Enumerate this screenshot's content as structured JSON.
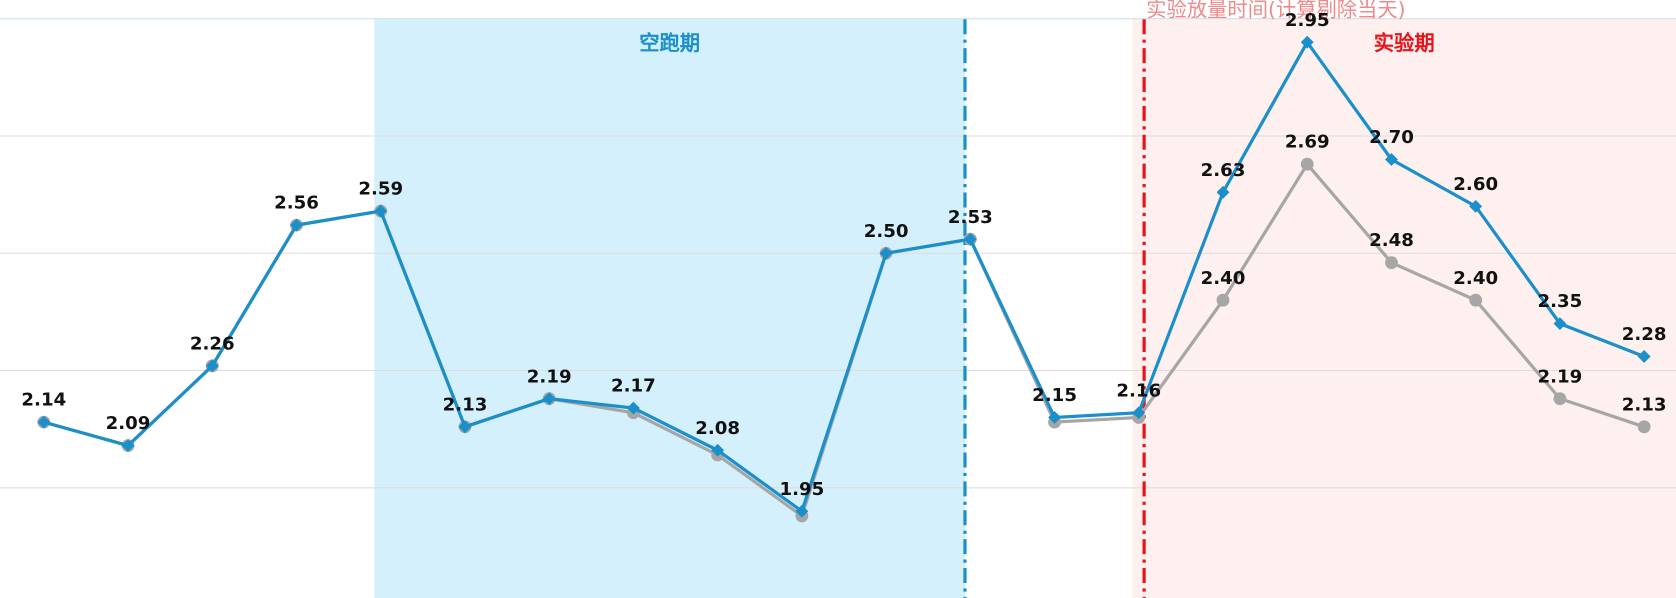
{
  "chart_data": {
    "type": "line",
    "categories": [
      null,
      null,
      null,
      null,
      null,
      null,
      null,
      null,
      null,
      null,
      null,
      null,
      null,
      null,
      null,
      null,
      null,
      null,
      null,
      null
    ],
    "series": [
      {
        "name": null,
        "color": "#a6a6a6",
        "marker": "circle",
        "values": [
          2.14,
          2.09,
          2.26,
          2.56,
          2.59,
          2.13,
          2.19,
          2.16,
          2.07,
          1.94,
          2.5,
          2.53,
          2.14,
          2.15,
          2.4,
          2.69,
          2.48,
          2.4,
          2.19,
          2.13
        ],
        "value_labels": [
          null,
          null,
          null,
          null,
          null,
          null,
          null,
          null,
          null,
          null,
          null,
          null,
          null,
          null,
          "2.40",
          "2.69",
          "2.48",
          "2.40",
          "2.19",
          "2.13"
        ]
      },
      {
        "name": null,
        "color": "#1a8fc9",
        "marker": "diamond",
        "values": [
          2.14,
          2.09,
          2.26,
          2.56,
          2.59,
          2.13,
          2.19,
          2.17,
          2.08,
          1.95,
          2.5,
          2.53,
          2.15,
          2.16,
          2.63,
          2.95,
          2.7,
          2.6,
          2.35,
          2.28
        ],
        "value_labels": [
          "2.14",
          "2.09",
          "2.26",
          "2.56",
          "2.59",
          "2.13",
          "2.19",
          "2.17",
          "2.08",
          "1.95",
          "2.50",
          "2.53",
          "2.15",
          "2.16",
          "2.63",
          "2.95",
          "2.70",
          "2.60",
          "2.35",
          "2.28"
        ]
      }
    ],
    "ylim": [
      1.765,
      3.04
    ],
    "yticks": [
      2,
      2.25,
      2.5,
      2.75,
      3
    ],
    "grid": true,
    "regions": [
      {
        "label": "空跑期",
        "start": 4,
        "end": 11,
        "color": "#d4f0fd",
        "label_color": "#1a8fc9"
      },
      {
        "label": "实验期",
        "start": 13,
        "color": "#fdf0ee",
        "label_color": "#e8141c"
      }
    ],
    "vlines": [
      {
        "at": 11,
        "color": "#1a8fc9"
      },
      {
        "at": 13,
        "color": "#e8141c",
        "label": "实验放量时间(计算剔除当天)",
        "label_color": "#f08a8a"
      }
    ]
  }
}
